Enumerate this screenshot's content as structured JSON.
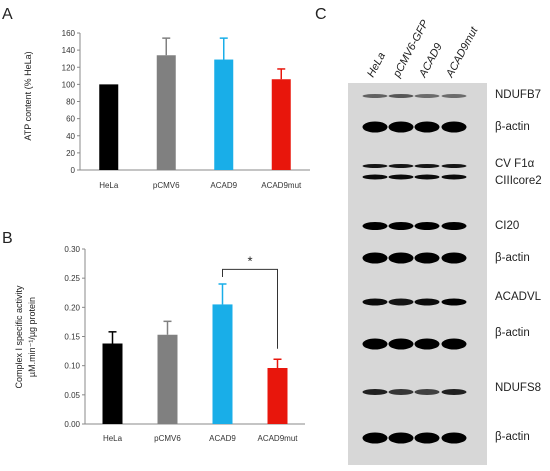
{
  "panels": {
    "a": "A",
    "b": "B",
    "c": "C"
  },
  "chart_data": [
    {
      "type": "bar",
      "categories": [
        "HeLa",
        "pCMV6",
        "ACAD9",
        "ACAD9mut"
      ],
      "values": [
        100,
        134,
        129,
        106
      ],
      "errors": [
        0,
        20,
        25,
        12
      ],
      "colors": [
        "#000000",
        "#808080",
        "#19aee8",
        "#e8160c"
      ],
      "ylabel": "ATP content (% HeLa)",
      "ylim": [
        0,
        160
      ],
      "yticks": [
        0,
        20,
        40,
        60,
        80,
        100,
        120,
        140,
        160
      ],
      "ytick_labels": [
        "0",
        "20",
        "40",
        "60",
        "80",
        "100",
        "120",
        "140",
        "160"
      ]
    },
    {
      "type": "bar",
      "categories": [
        "HeLa",
        "pCMV6",
        "ACAD9",
        "ACAD9mut"
      ],
      "values": [
        0.138,
        0.153,
        0.205,
        0.096
      ],
      "errors": [
        0.02,
        0.023,
        0.035,
        0.015
      ],
      "colors": [
        "#000000",
        "#808080",
        "#19aee8",
        "#e8160c"
      ],
      "ylabel_line1": "Complex I specific activity",
      "ylabel_line2": "µM.min⁻¹/µg protein",
      "ylim": [
        0,
        0.3
      ],
      "yticks": [
        0,
        0.05,
        0.1,
        0.15,
        0.2,
        0.25,
        0.3
      ],
      "ytick_labels": [
        "0.00",
        "0.05",
        "0.10",
        "0.15",
        "0.20",
        "0.25",
        "0.30"
      ],
      "annotation": "*"
    }
  ],
  "blot": {
    "lanes": [
      "HeLa",
      "pCMV6-GFP",
      "ACAD9",
      "ACAD9mut"
    ],
    "labels": [
      "NDUFB7",
      "β-actin",
      "CV F1α",
      "CIIIcore2",
      "CI20",
      "β-actin",
      "ACADVL",
      "β-actin",
      "NDUFS8",
      "β-actin"
    ]
  }
}
